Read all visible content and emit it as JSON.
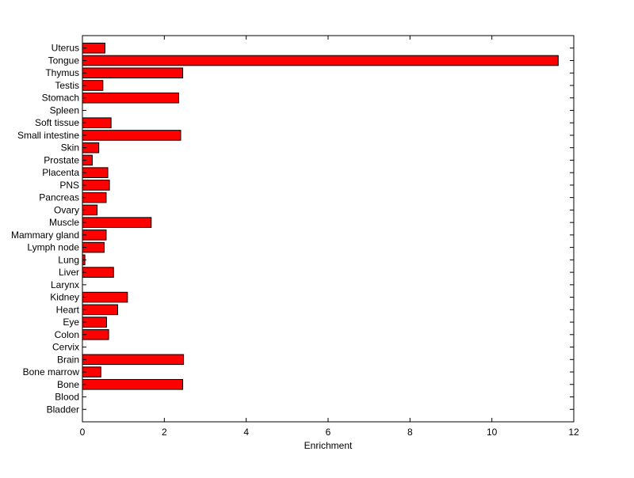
{
  "chart_data": {
    "type": "bar",
    "orientation": "horizontal",
    "title": "",
    "xlabel": "Enrichment",
    "ylabel": "",
    "xlim": [
      0,
      12
    ],
    "xticks": [
      0,
      2,
      4,
      6,
      8,
      10,
      12
    ],
    "grid": false,
    "bar_color": "#ff0000",
    "categories": [
      "Uterus",
      "Tongue",
      "Thymus",
      "Testis",
      "Stomach",
      "Spleen",
      "Soft tissue",
      "Small intestine",
      "Skin",
      "Prostate",
      "Placenta",
      "PNS",
      "Pancreas",
      "Ovary",
      "Muscle",
      "Mammary gland",
      "Lymph node",
      "Lung",
      "Liver",
      "Larynx",
      "Kidney",
      "Heart",
      "Eye",
      "Colon",
      "Cervix",
      "Brain",
      "Bone marrow",
      "Bone",
      "Blood",
      "Bladder"
    ],
    "values": [
      0.55,
      11.62,
      2.45,
      0.5,
      2.35,
      0,
      0.7,
      2.4,
      0.4,
      0.24,
      0.62,
      0.66,
      0.58,
      0.36,
      1.68,
      0.58,
      0.53,
      0.06,
      0.76,
      0,
      1.1,
      0.86,
      0.59,
      0.64,
      0,
      2.47,
      0.45,
      2.45,
      0,
      0
    ]
  }
}
